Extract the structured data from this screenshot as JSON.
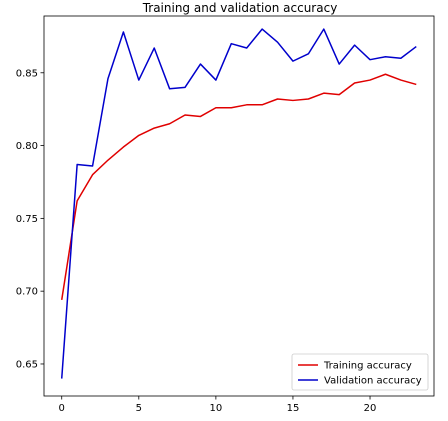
{
  "chart_data": {
    "type": "line",
    "title": "Training and validation accuracy",
    "xlabel": "",
    "ylabel": "",
    "xlim": [
      -1.15,
      24.15
    ],
    "ylim": [
      0.628,
      0.889
    ],
    "x_ticks": [
      0,
      5,
      10,
      15,
      20
    ],
    "y_ticks": [
      0.65,
      0.7,
      0.75,
      0.8,
      0.85
    ],
    "x_tick_labels": [
      "0",
      "5",
      "10",
      "15",
      "20"
    ],
    "y_tick_labels": [
      "0.65",
      "0.70",
      "0.75",
      "0.80",
      "0.85"
    ],
    "grid": false,
    "legend_position": "lower-right",
    "x": [
      0,
      1,
      2,
      3,
      4,
      5,
      6,
      7,
      8,
      9,
      10,
      11,
      12,
      13,
      14,
      15,
      16,
      17,
      18,
      19,
      20,
      21,
      22,
      23
    ],
    "series": [
      {
        "name": "Training accuracy",
        "color": "#e00000",
        "values": [
          0.694,
          0.762,
          0.78,
          0.79,
          0.799,
          0.807,
          0.812,
          0.815,
          0.821,
          0.82,
          0.826,
          0.826,
          0.828,
          0.828,
          0.832,
          0.831,
          0.832,
          0.836,
          0.835,
          0.843,
          0.845,
          0.849,
          0.845,
          0.842
        ]
      },
      {
        "name": "Validation accuracy",
        "color": "#0000cc",
        "values": [
          0.64,
          0.787,
          0.786,
          0.846,
          0.878,
          0.845,
          0.867,
          0.839,
          0.84,
          0.856,
          0.845,
          0.87,
          0.867,
          0.88,
          0.871,
          0.858,
          0.863,
          0.88,
          0.856,
          0.869,
          0.859,
          0.861,
          0.86,
          0.868
        ]
      }
    ]
  }
}
